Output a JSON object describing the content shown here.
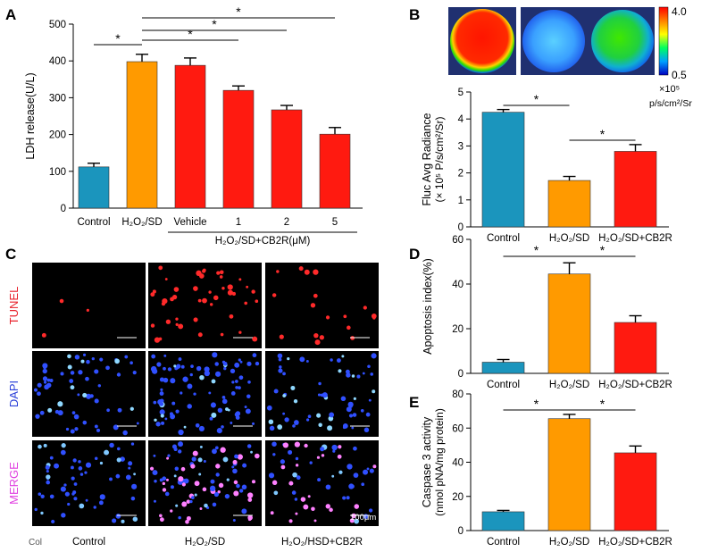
{
  "colors": {
    "control": "#1b95bd",
    "h2o2": "#ff9a00",
    "red": "#ff1a10",
    "axis": "#000000",
    "micro_bg": "#000000"
  },
  "panels": {
    "A": {
      "letter": "A"
    },
    "B": {
      "letter": "B",
      "colorbar_max": "4.0",
      "colorbar_min": "0.5",
      "unit_line1": "×10⁵",
      "unit_line2": "p/s/cm²/Sr"
    },
    "C": {
      "letter": "C",
      "rows": [
        "TUNEL",
        "DAPI",
        "MERGE"
      ],
      "row_colors": [
        "#e8202a",
        "#2a3fd8",
        "#e040e0"
      ],
      "cols": [
        "Control",
        "H₂O₂/SD",
        "H₂O₂/HSD+CB2R"
      ],
      "corner": "Col",
      "scale": "100μm"
    },
    "D": {
      "letter": "D"
    },
    "E": {
      "letter": "E"
    }
  },
  "chart_data": [
    {
      "id": "A",
      "type": "bar",
      "ylabel": "LDH release(U/L)",
      "ylim": [
        0,
        500
      ],
      "yticks": [
        "0",
        "100",
        "200",
        "300",
        "400",
        "500"
      ],
      "categories": [
        "Control",
        "H₂O₂/SD",
        "Vehicle",
        "1",
        "2",
        "5"
      ],
      "values": [
        112,
        398,
        388,
        320,
        267,
        201
      ],
      "errors": [
        10,
        20,
        20,
        12,
        12,
        18
      ],
      "bar_colors": [
        "control",
        "h2o2",
        "red",
        "red",
        "red",
        "red"
      ],
      "group_label": "H₂O₂/SD+CB2R(μM)",
      "significance": [
        {
          "from": 0,
          "to": 1,
          "label": "*"
        },
        {
          "from": 1,
          "to": 3,
          "label": "*"
        },
        {
          "from": 1,
          "to": 4,
          "label": "*"
        },
        {
          "from": 1,
          "to": 5,
          "label": "*"
        }
      ]
    },
    {
      "id": "B",
      "type": "bar",
      "ylabel_line1": "Fluc Avg Radiance",
      "ylabel_line2": "(× 10⁵ P/s/cm²/Sr)",
      "ylim": [
        0,
        5
      ],
      "yticks": [
        "0",
        "1",
        "2",
        "3",
        "4",
        "5"
      ],
      "categories": [
        "Control",
        "H₂O₂/SD",
        "H₂O₂/SD+CB2R"
      ],
      "values": [
        4.25,
        1.72,
        2.8
      ],
      "errors": [
        0.1,
        0.15,
        0.25
      ],
      "bar_colors": [
        "control",
        "h2o2",
        "red"
      ],
      "significance": [
        {
          "from": 0,
          "to": 1,
          "label": "*"
        },
        {
          "from": 1,
          "to": 2,
          "label": "*"
        }
      ]
    },
    {
      "id": "D",
      "type": "bar",
      "ylabel": "Apoptosis index(%)",
      "ylim": [
        0,
        60
      ],
      "yticks": [
        "0",
        "20",
        "40",
        "60"
      ],
      "categories": [
        "Control",
        "H₂O₂/SD",
        "H₂O₂/SD+CB2R"
      ],
      "values": [
        5,
        44.5,
        22.8
      ],
      "errors": [
        1.2,
        5,
        3
      ],
      "bar_colors": [
        "control",
        "h2o2",
        "red"
      ],
      "significance": [
        {
          "from": 0,
          "to": 1,
          "label": "*"
        },
        {
          "from": 1,
          "to": 2,
          "label": "*"
        }
      ]
    },
    {
      "id": "E",
      "type": "bar",
      "ylabel_line1": "Caspase 3 activity",
      "ylabel_line2": "(nmol pNA/mg protein)",
      "ylim": [
        0,
        80
      ],
      "yticks": [
        "0",
        "20",
        "40",
        "60",
        "80"
      ],
      "categories": [
        "Control",
        "H₂O₂/SD",
        "H₂O₂/SD+CB2R"
      ],
      "values": [
        11,
        65.5,
        45.5
      ],
      "errors": [
        0.8,
        2.5,
        4
      ],
      "bar_colors": [
        "control",
        "h2o2",
        "red"
      ],
      "significance": [
        {
          "from": 0,
          "to": 1,
          "label": "*"
        },
        {
          "from": 1,
          "to": 2,
          "label": "*"
        }
      ]
    }
  ]
}
